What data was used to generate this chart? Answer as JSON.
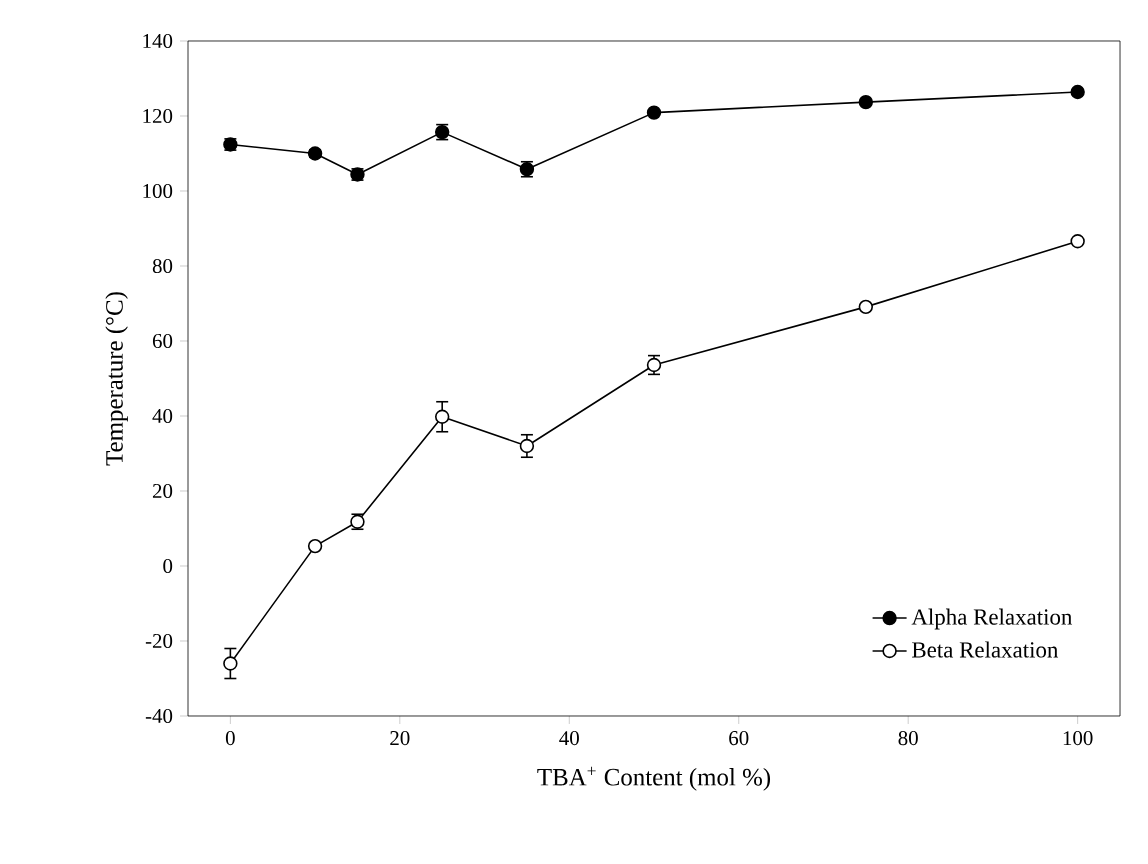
{
  "chart_data": {
    "type": "line",
    "xlabel": "TBA$^{+}$ Content (mol %)",
    "ylabel": "Temperature (°C)",
    "x": [
      0,
      10,
      15,
      25,
      35,
      50,
      75,
      100
    ],
    "series": [
      {
        "name": "Alpha Relaxation",
        "color": "#000000",
        "values": [
          112.4,
          110,
          104.4,
          115.7,
          105.8,
          120.9,
          123.7,
          126.4
        ],
        "errors": [
          1.5,
          1,
          1.5,
          2,
          2,
          null,
          null,
          null
        ]
      },
      {
        "name": "Beta Relaxation",
        "color": "#ffffff",
        "values": [
          -26,
          5.3,
          11.8,
          39.8,
          32,
          53.6,
          69.1,
          86.6
        ],
        "errors": [
          4,
          null,
          2,
          4,
          3,
          2.5,
          null,
          null
        ]
      }
    ],
    "xlim": [
      -5,
      105
    ],
    "ylim": [
      -40,
      140
    ],
    "xticks": [
      0,
      20,
      40,
      60,
      80,
      100
    ],
    "yticks": [
      -40,
      -20,
      0,
      20,
      40,
      60,
      80,
      100,
      120,
      140
    ],
    "legend": "bottom right",
    "marker": "circle",
    "line_style": "solid",
    "grid": false
  }
}
